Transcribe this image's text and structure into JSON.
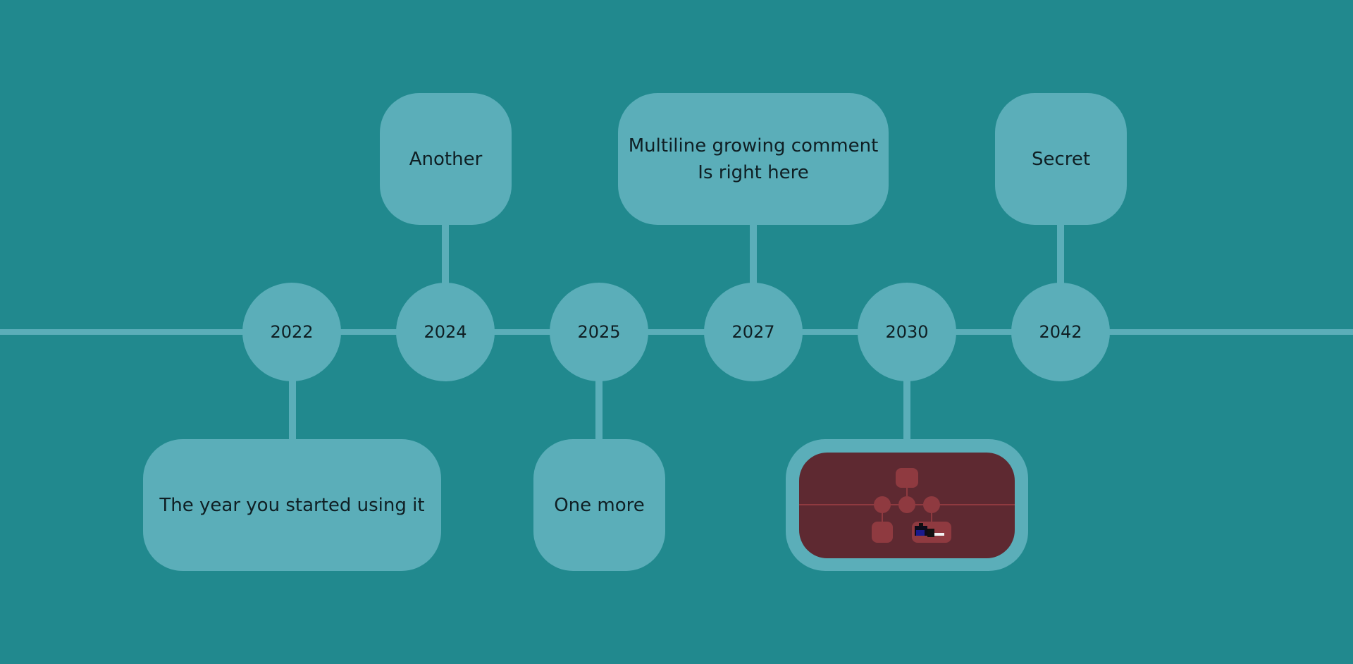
{
  "timeline": {
    "colors": {
      "background": "#21898e",
      "node": "#5baeb9",
      "text": "#0f1f24",
      "preview_bg": "#5e2931",
      "preview_node": "#8f3a40"
    },
    "nodes": [
      {
        "year": "2022",
        "comment_lines": [
          "The year you started using it"
        ],
        "side": "below"
      },
      {
        "year": "2024",
        "comment_lines": [
          "Another"
        ],
        "side": "above"
      },
      {
        "year": "2025",
        "comment_lines": [
          "One more"
        ],
        "side": "below"
      },
      {
        "year": "2027",
        "comment_lines": [
          "Multiline growing comment",
          "Is right here"
        ],
        "side": "above"
      },
      {
        "year": "2030",
        "comment_lines": [],
        "side": "below",
        "preview": true
      },
      {
        "year": "2042",
        "comment_lines": [
          "Secret"
        ],
        "side": "above"
      }
    ]
  }
}
